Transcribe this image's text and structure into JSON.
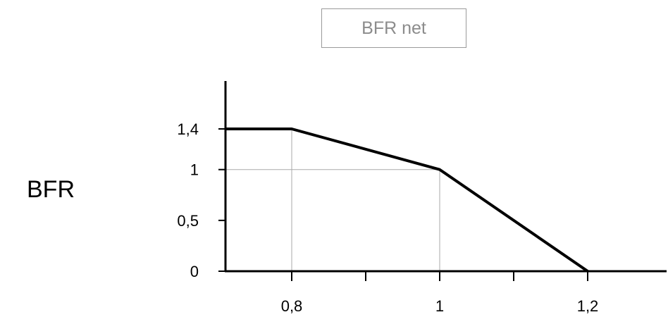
{
  "chart_data": {
    "type": "line",
    "title": "BFR net",
    "xlabel": "",
    "ylabel": "BFR",
    "xlim": [
      0.7,
      1.3
    ],
    "ylim": [
      0,
      1.55
    ],
    "x_ticks": [
      0.8,
      1.0,
      1.2
    ],
    "x_tick_labels": [
      "0,8",
      "1",
      "1,2"
    ],
    "y_ticks": [
      0,
      0.5,
      1.0,
      1.4
    ],
    "y_tick_labels": [
      "0",
      "0,5",
      "1",
      "1,4"
    ],
    "series": [
      {
        "values_xy": [
          [
            0.7,
            1.4
          ],
          [
            0.8,
            1.4
          ],
          [
            1.0,
            1.0
          ],
          [
            1.2,
            0.0
          ]
        ]
      }
    ],
    "reference_lines": [
      {
        "x": 0.8,
        "y": 1.4
      },
      {
        "x": 1.0,
        "y": 1.0
      }
    ],
    "grid": false,
    "colors": {
      "line": "#000000",
      "guide": "#aaaaaa",
      "title_text": "#8c8c8c"
    }
  }
}
